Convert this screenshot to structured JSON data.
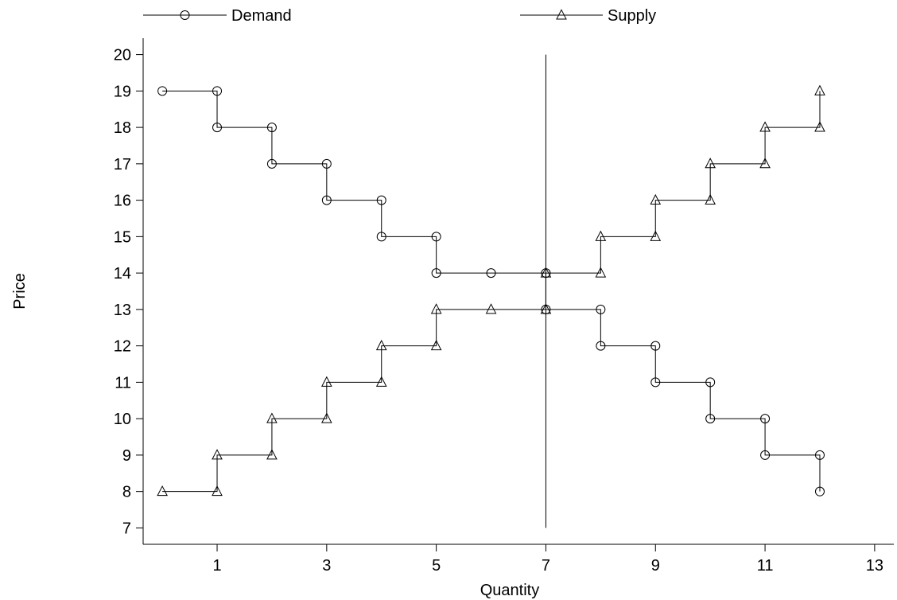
{
  "chart_data": {
    "type": "line",
    "title": "",
    "xlabel": "Quantity",
    "ylabel": "Price",
    "xlim": [
      -0.35,
      13.35
    ],
    "ylim": [
      6.55,
      20.45
    ],
    "x_ticks": [
      1,
      3,
      5,
      7,
      9,
      11,
      13
    ],
    "y_ticks": [
      7,
      8,
      9,
      10,
      11,
      12,
      13,
      14,
      15,
      16,
      17,
      18,
      19,
      20
    ],
    "grid": false,
    "legend_position": "top",
    "series": [
      {
        "name": "Demand",
        "marker": "circle",
        "step": "staircase",
        "points": [
          [
            0,
            19
          ],
          [
            1,
            19
          ],
          [
            1,
            18
          ],
          [
            2,
            18
          ],
          [
            2,
            17
          ],
          [
            3,
            17
          ],
          [
            3,
            16
          ],
          [
            4,
            16
          ],
          [
            4,
            15
          ],
          [
            5,
            15
          ],
          [
            5,
            14
          ],
          [
            6,
            14
          ],
          [
            7,
            14
          ],
          [
            7,
            13
          ],
          [
            8,
            13
          ],
          [
            8,
            12
          ],
          [
            9,
            12
          ],
          [
            9,
            11
          ],
          [
            10,
            11
          ],
          [
            10,
            10
          ],
          [
            11,
            10
          ],
          [
            11,
            9
          ],
          [
            12,
            9
          ],
          [
            12,
            8
          ]
        ]
      },
      {
        "name": "Supply",
        "marker": "triangle",
        "step": "staircase",
        "points": [
          [
            0,
            8
          ],
          [
            1,
            8
          ],
          [
            1,
            9
          ],
          [
            2,
            9
          ],
          [
            2,
            10
          ],
          [
            3,
            10
          ],
          [
            3,
            11
          ],
          [
            4,
            11
          ],
          [
            4,
            12
          ],
          [
            5,
            12
          ],
          [
            5,
            13
          ],
          [
            6,
            13
          ],
          [
            7,
            13
          ],
          [
            7,
            14
          ],
          [
            8,
            14
          ],
          [
            8,
            15
          ],
          [
            9,
            15
          ],
          [
            9,
            16
          ],
          [
            10,
            16
          ],
          [
            10,
            17
          ],
          [
            11,
            17
          ],
          [
            11,
            18
          ],
          [
            12,
            18
          ],
          [
            12,
            19
          ]
        ]
      }
    ],
    "vertical_line": {
      "x": 7,
      "y_from": 7,
      "y_to": 20
    },
    "colors": {
      "line": "#000000",
      "background": "#ffffff"
    }
  }
}
